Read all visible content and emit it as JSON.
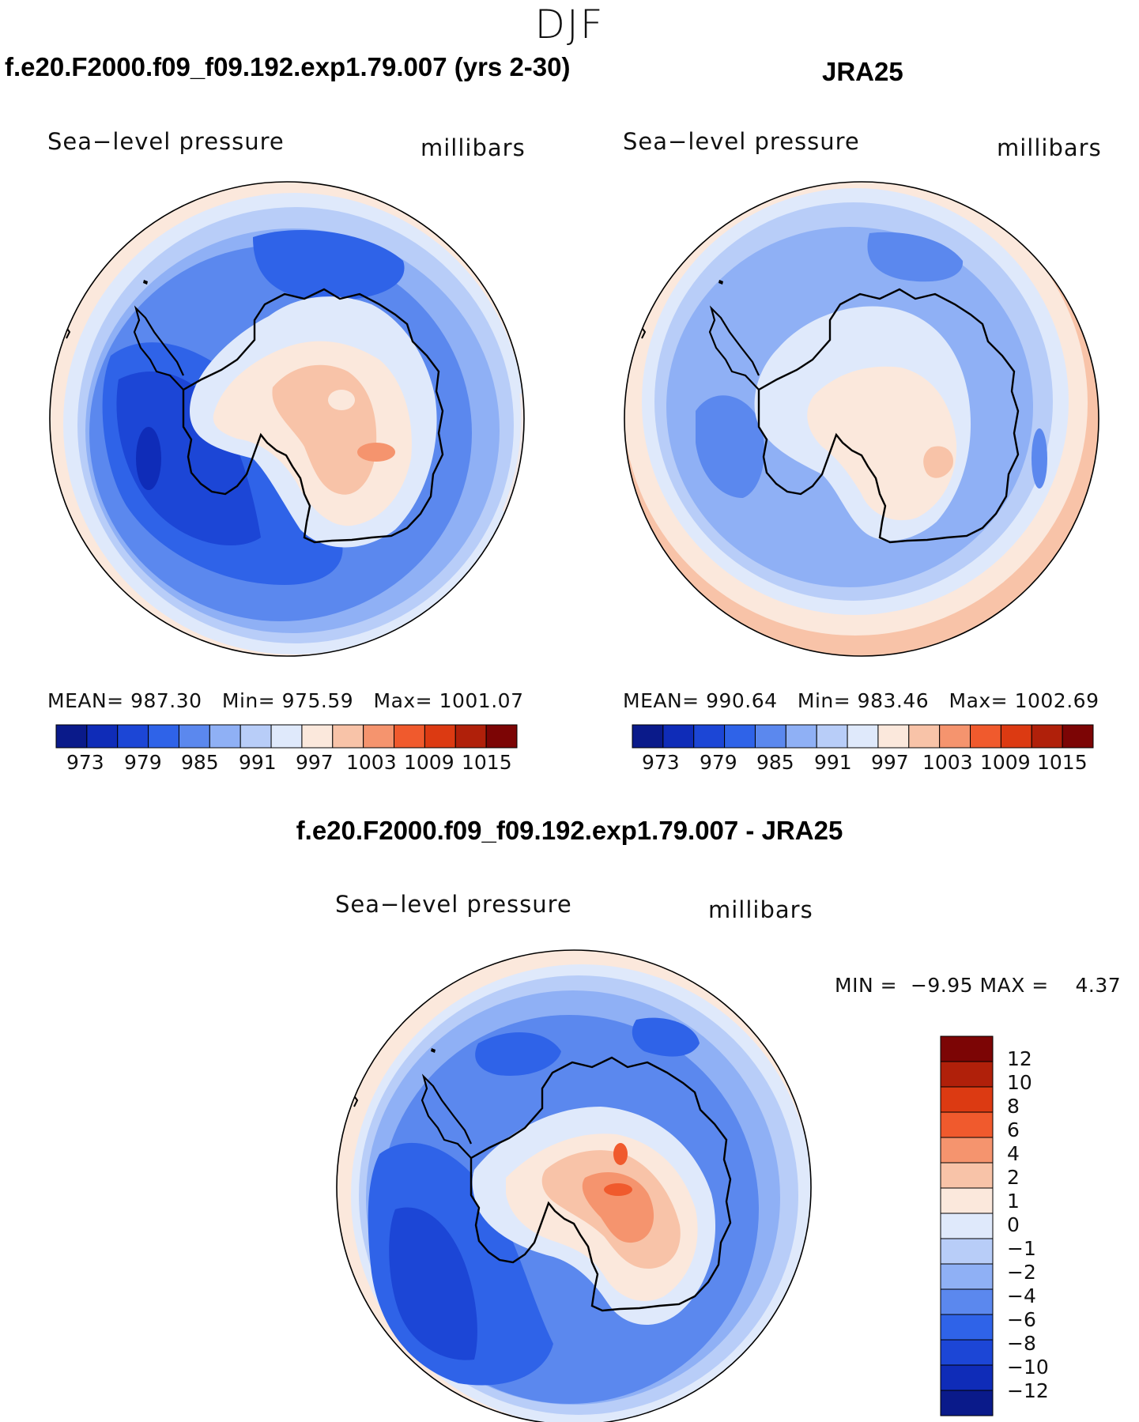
{
  "page": {
    "season": "DJF",
    "colors": [
      "#0a1a8a",
      "#0f2cb8",
      "#1c46d6",
      "#2f63e8",
      "#5b88ee",
      "#8fb0f5",
      "#b8cdf8",
      "#dfe9fb",
      "#fbe8dc",
      "#f8c3a8",
      "#f5946e",
      "#f05a2d",
      "#dc3a12",
      "#b0200a",
      "#7c0505"
    ]
  },
  "panels": [
    {
      "id": "model",
      "title": "f.e20.F2000.f09_f09.192.exp1.79.007 (yrs 2-30)",
      "variable": "Sea−level pressure",
      "units": "millibars",
      "stats": {
        "mean_label": "MEAN=",
        "mean": "987.30",
        "min_label": "Min=",
        "min": "975.59",
        "max_label": "Max=",
        "max": "1001.07"
      },
      "colorbar_ticks": [
        "973",
        "979",
        "985",
        "991",
        "997",
        "1003",
        "1009",
        "1015"
      ]
    },
    {
      "id": "obs",
      "title": "JRA25",
      "variable": "Sea−level pressure",
      "units": "millibars",
      "stats": {
        "mean_label": "MEAN=",
        "mean": "990.64",
        "min_label": "Min=",
        "min": "983.46",
        "max_label": "Max=",
        "max": "1002.69"
      },
      "colorbar_ticks": [
        "973",
        "979",
        "985",
        "991",
        "997",
        "1003",
        "1009",
        "1015"
      ]
    },
    {
      "id": "diff",
      "title": "f.e20.F2000.f09_f09.192.exp1.79.007 - JRA25",
      "variable": "Sea−level pressure",
      "units": "millibars",
      "stats": {
        "min_label": "MIN =",
        "min": "−9.95",
        "max_label": "MAX =",
        "max": "4.37"
      },
      "colorbar_ticks": [
        "12",
        "10",
        "8",
        "6",
        "4",
        "2",
        "1",
        "0",
        "−1",
        "−2",
        "−4",
        "−6",
        "−8",
        "−10",
        "−12"
      ]
    }
  ]
}
